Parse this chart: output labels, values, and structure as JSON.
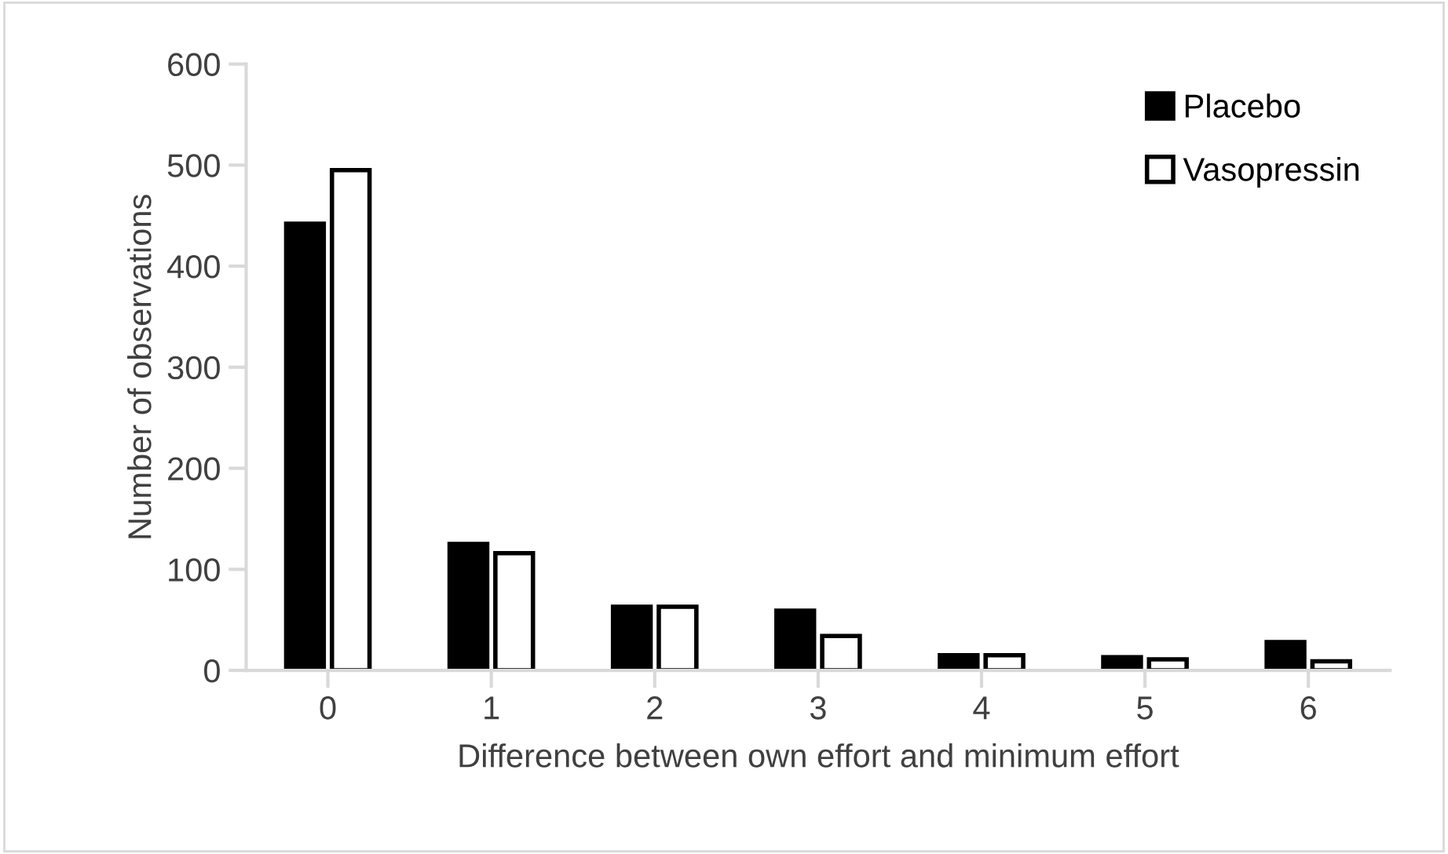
{
  "chart_data": {
    "type": "bar",
    "xlabel": "Difference between own effort and minimum effort",
    "ylabel": "Number of observations",
    "categories": [
      "0",
      "1",
      "2",
      "3",
      "4",
      "5",
      "6"
    ],
    "series": [
      {
        "name": "Placebo",
        "color": "#000000",
        "values": [
          442,
          125,
          63,
          59,
          15,
          13,
          28
        ]
      },
      {
        "name": "Vasopressin",
        "color": "#ffffff",
        "values": [
          495,
          116,
          63,
          34,
          15,
          11,
          9
        ]
      }
    ],
    "ylim": [
      0,
      600
    ],
    "yticks": [
      0,
      100,
      200,
      300,
      400,
      500,
      600
    ],
    "grid": false,
    "legend": "top right"
  }
}
